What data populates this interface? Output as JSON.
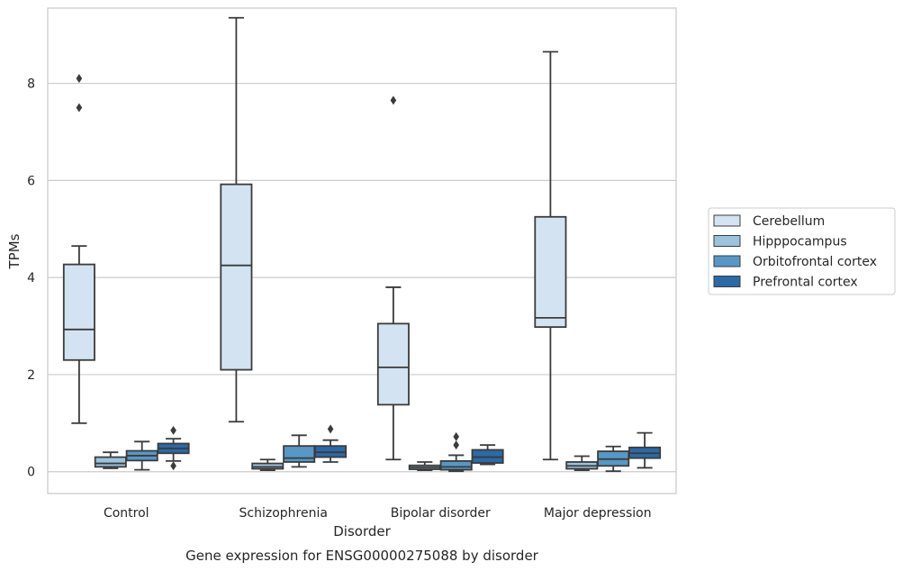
{
  "chart_data": {
    "type": "boxplot",
    "title": "",
    "caption": "Gene expression for ENSG00000275088 by disorder",
    "xlabel": "Disorder",
    "ylabel": "TPMs",
    "categories": [
      "Control",
      "Schizophrenia",
      "Bipolar disorder",
      "Major depression"
    ],
    "ylim": [
      -0.45,
      9.55
    ],
    "yticks": [
      0,
      2,
      4,
      6,
      8
    ],
    "grid": "horizontal",
    "legend_placement": "right",
    "series": [
      {
        "name": "Cerebellum",
        "color": "#d4e3f2",
        "boxes": [
          {
            "whisker_low": 1.0,
            "q1": 2.3,
            "median": 2.93,
            "q3": 4.27,
            "whisker_high": 4.65,
            "outliers": [
              7.5,
              8.1
            ]
          },
          {
            "whisker_low": 1.03,
            "q1": 2.1,
            "median": 4.25,
            "q3": 5.92,
            "whisker_high": 9.35,
            "outliers": []
          },
          {
            "whisker_low": 0.25,
            "q1": 1.38,
            "median": 2.15,
            "q3": 3.05,
            "whisker_high": 3.8,
            "outliers": [
              7.65
            ]
          },
          {
            "whisker_low": 0.25,
            "q1": 2.98,
            "median": 3.17,
            "q3": 5.25,
            "whisker_high": 8.65,
            "outliers": []
          }
        ]
      },
      {
        "name": "Hipppocampus",
        "color": "#9ac3dd",
        "boxes": [
          {
            "whisker_low": 0.07,
            "q1": 0.1,
            "median": 0.17,
            "q3": 0.3,
            "whisker_high": 0.4,
            "outliers": []
          },
          {
            "whisker_low": 0.03,
            "q1": 0.06,
            "median": 0.1,
            "q3": 0.17,
            "whisker_high": 0.25,
            "outliers": []
          },
          {
            "whisker_low": 0.03,
            "q1": 0.05,
            "median": 0.09,
            "q3": 0.13,
            "whisker_high": 0.2,
            "outliers": []
          },
          {
            "whisker_low": 0.03,
            "q1": 0.06,
            "median": 0.12,
            "q3": 0.2,
            "whisker_high": 0.32,
            "outliers": []
          }
        ]
      },
      {
        "name": "Orbitofrontal cortex",
        "color": "#5698c6",
        "boxes": [
          {
            "whisker_low": 0.04,
            "q1": 0.23,
            "median": 0.33,
            "q3": 0.43,
            "whisker_high": 0.62,
            "outliers": []
          },
          {
            "whisker_low": 0.1,
            "q1": 0.2,
            "median": 0.28,
            "q3": 0.53,
            "whisker_high": 0.75,
            "outliers": []
          },
          {
            "whisker_low": 0.01,
            "q1": 0.04,
            "median": 0.1,
            "q3": 0.22,
            "whisker_high": 0.34,
            "outliers": [
              0.55,
              0.72
            ]
          },
          {
            "whisker_low": 0.01,
            "q1": 0.12,
            "median": 0.26,
            "q3": 0.42,
            "whisker_high": 0.52,
            "outliers": []
          }
        ]
      },
      {
        "name": "Prefrontal cortex",
        "color": "#2a6aa8",
        "boxes": [
          {
            "whisker_low": 0.22,
            "q1": 0.38,
            "median": 0.48,
            "q3": 0.58,
            "whisker_high": 0.68,
            "outliers": [
              0.12,
              0.85
            ]
          },
          {
            "whisker_low": 0.2,
            "q1": 0.3,
            "median": 0.4,
            "q3": 0.53,
            "whisker_high": 0.65,
            "outliers": [
              0.88
            ]
          },
          {
            "whisker_low": 0.15,
            "q1": 0.18,
            "median": 0.3,
            "q3": 0.45,
            "whisker_high": 0.55,
            "outliers": []
          },
          {
            "whisker_low": 0.08,
            "q1": 0.28,
            "median": 0.38,
            "q3": 0.5,
            "whisker_high": 0.8,
            "outliers": []
          }
        ]
      }
    ]
  }
}
